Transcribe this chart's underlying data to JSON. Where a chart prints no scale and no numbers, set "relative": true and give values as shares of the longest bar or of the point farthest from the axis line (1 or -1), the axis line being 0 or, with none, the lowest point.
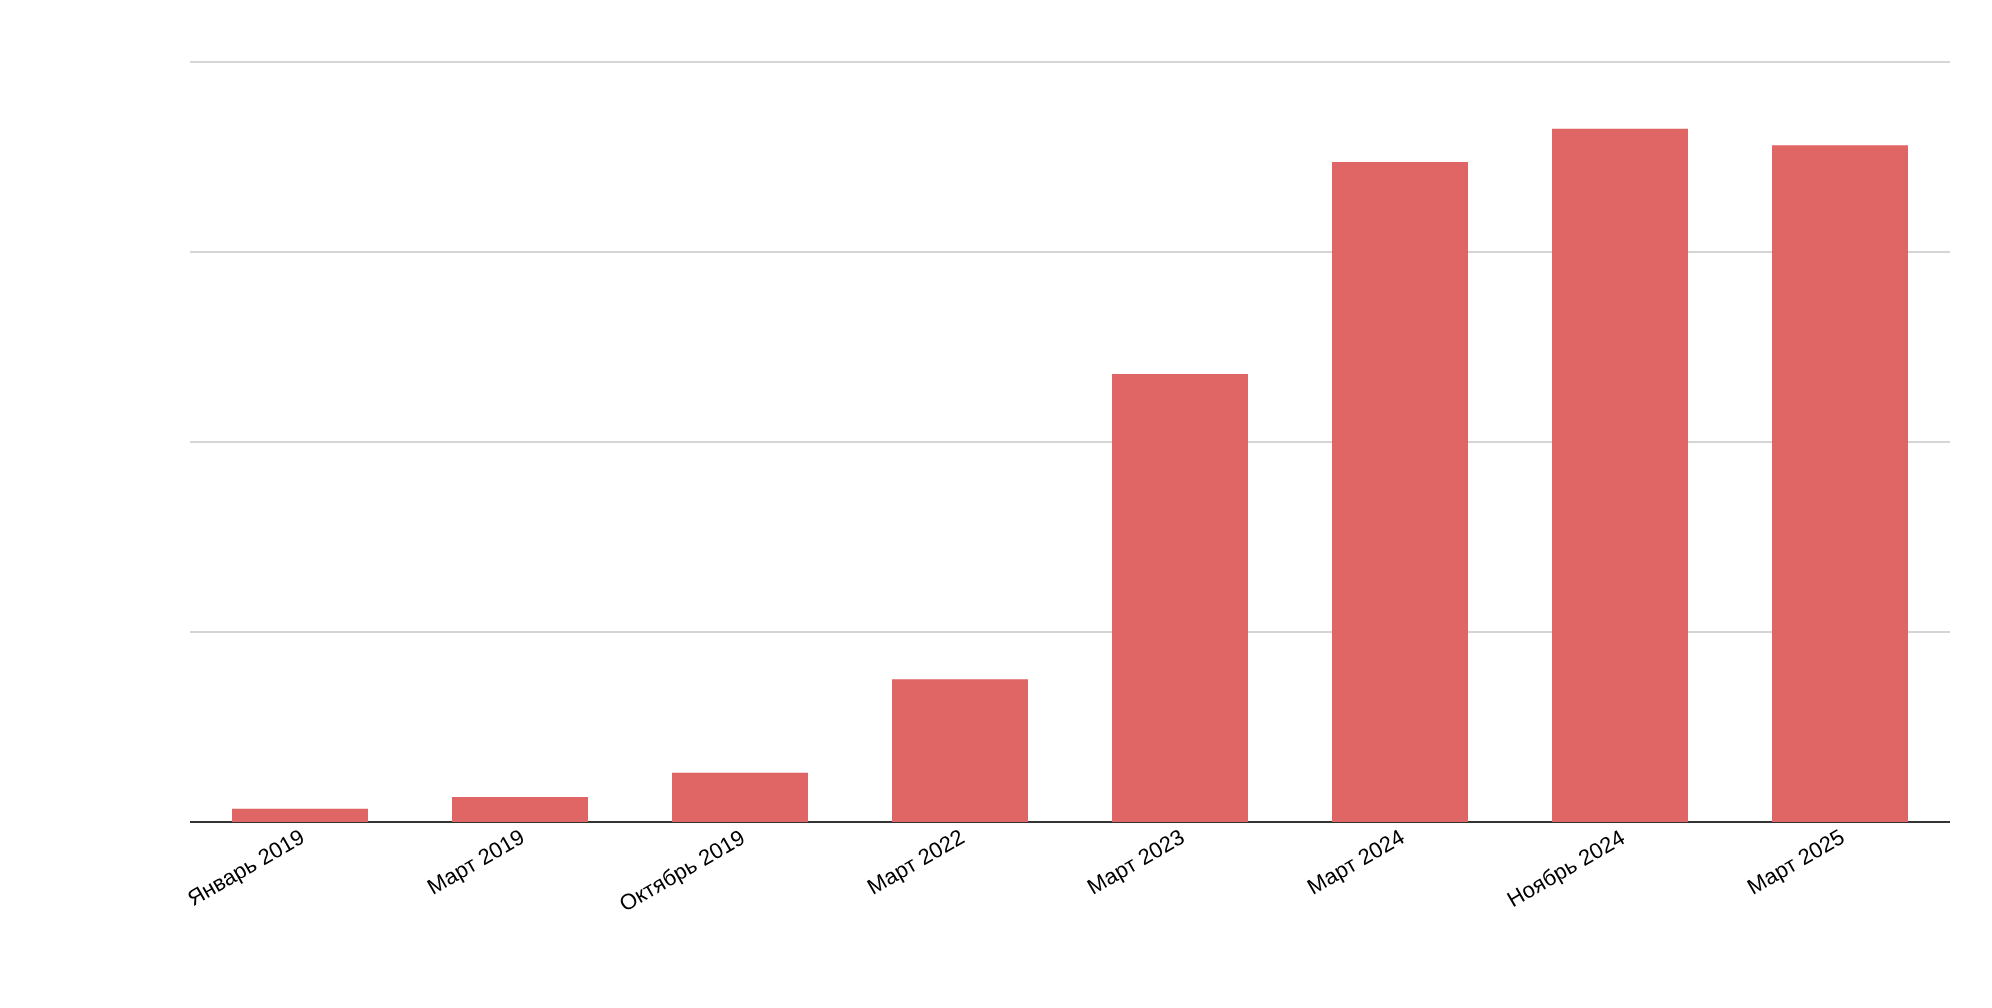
{
  "chart_data": {
    "type": "bar",
    "relative": true,
    "grid": "y",
    "color": "#e06666",
    "categories": [
      "Январь 2019",
      "Март 2019",
      "Октябрь 2019",
      "Март 2022",
      "Март 2023",
      "Март 2024",
      "Ноябрь 2024",
      "Март 2025"
    ],
    "values": [
      0.019,
      0.036,
      0.071,
      0.206,
      0.646,
      0.952,
      1,
      0.976
    ]
  }
}
